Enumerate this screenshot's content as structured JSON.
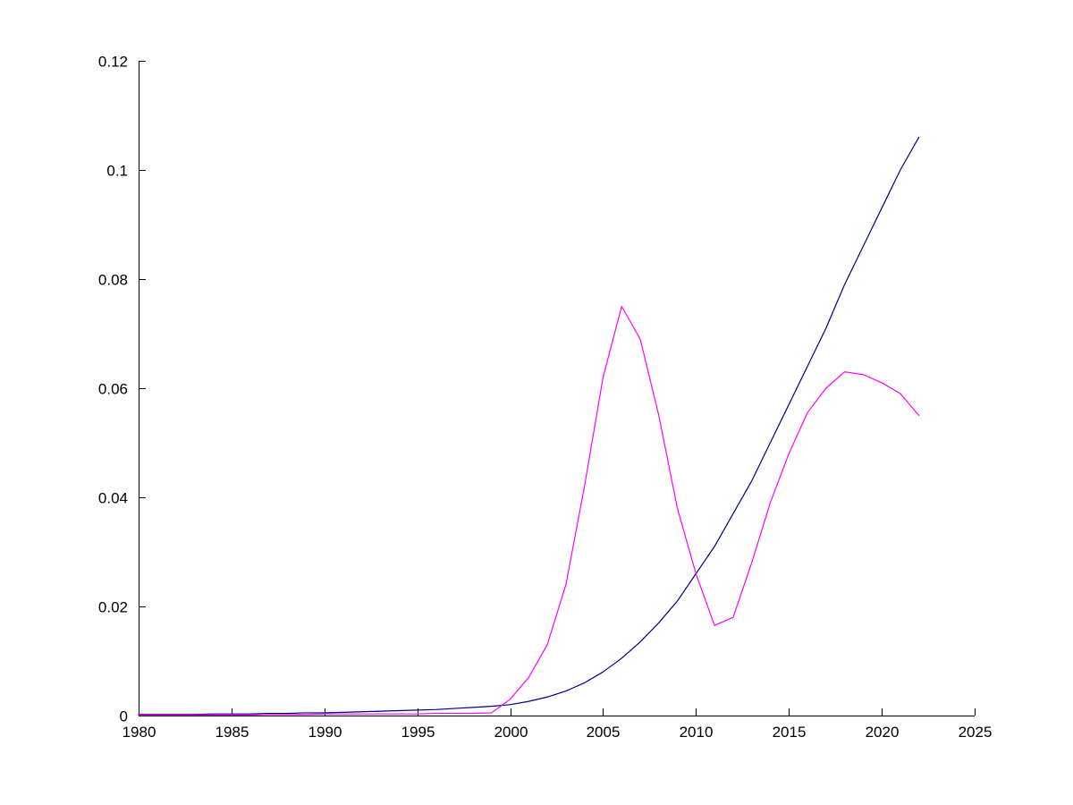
{
  "figure": {
    "background": "#ffffff",
    "axis_color": "#000000"
  },
  "chart_data": {
    "type": "line",
    "title": "",
    "xlabel": "",
    "ylabel": "",
    "grid": false,
    "legend": null,
    "xlim": [
      1980,
      2025
    ],
    "ylim": [
      0,
      0.12
    ],
    "xticks": {
      "values": [
        1980,
        1985,
        1990,
        1995,
        2000,
        2005,
        2010,
        2015,
        2020,
        2025
      ],
      "labels": [
        "1980",
        "1985",
        "1990",
        "1995",
        "2000",
        "2005",
        "2010",
        "2015",
        "2020",
        "2025"
      ]
    },
    "yticks": {
      "values": [
        0,
        0.02,
        0.04,
        0.06,
        0.08,
        0.1,
        0.12
      ],
      "labels": [
        "0",
        "0.02",
        "0.04",
        "0.06",
        "0.08",
        "0.1",
        "0.12"
      ]
    },
    "x": [
      1980,
      1981,
      1982,
      1983,
      1984,
      1985,
      1986,
      1987,
      1988,
      1989,
      1990,
      1991,
      1992,
      1993,
      1994,
      1995,
      1996,
      1997,
      1998,
      1999,
      2000,
      2001,
      2002,
      2003,
      2004,
      2005,
      2006,
      2007,
      2008,
      2009,
      2010,
      2011,
      2012,
      2013,
      2014,
      2015,
      2016,
      2017,
      2018,
      2019,
      2020,
      2021,
      2022
    ],
    "series": [
      {
        "name": "blue-curve",
        "color": "#00008B",
        "values": [
          0.0002,
          0.0002,
          0.0002,
          0.0002,
          0.0003,
          0.0003,
          0.0003,
          0.0004,
          0.0004,
          0.0005,
          0.0005,
          0.0006,
          0.0007,
          0.0008,
          0.0009,
          0.001,
          0.0011,
          0.0013,
          0.0015,
          0.0017,
          0.002,
          0.0026,
          0.0034,
          0.0045,
          0.006,
          0.008,
          0.0105,
          0.0135,
          0.017,
          0.021,
          0.026,
          0.031,
          0.037,
          0.043,
          0.05,
          0.057,
          0.064,
          0.071,
          0.079,
          0.086,
          0.093,
          0.1,
          0.106
        ]
      },
      {
        "name": "magenta-curve",
        "color": "#FF00FF",
        "values": [
          0.0001,
          0.0001,
          0.0001,
          0.0001,
          0.0001,
          0.0001,
          0.0001,
          0.0002,
          0.0002,
          0.0002,
          0.0003,
          0.0003,
          0.0003,
          0.0003,
          0.0003,
          0.0003,
          0.0004,
          0.0004,
          0.0004,
          0.0005,
          0.003,
          0.007,
          0.013,
          0.024,
          0.042,
          0.062,
          0.075,
          0.069,
          0.055,
          0.038,
          0.026,
          0.0165,
          0.018,
          0.028,
          0.039,
          0.048,
          0.0555,
          0.06,
          0.063,
          0.0625,
          0.061,
          0.059,
          0.055
        ]
      }
    ]
  }
}
